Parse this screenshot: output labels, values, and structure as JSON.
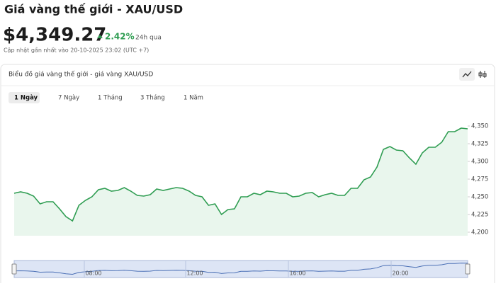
{
  "header": {
    "title": "Giá vàng thế giới - XAU/USD",
    "price": "$4,349.27",
    "change": "2.42%",
    "change_period": "24h qua",
    "updated": "Cập nhật gần nhất vào 20-10-2025 23:02 (UTC +7)"
  },
  "card": {
    "title": "Biểu đồ giá vàng thế giới - giá vàng XAU/USD",
    "tabs": [
      "1 Ngày",
      "7 Ngày",
      "1 Tháng",
      "3 Tháng",
      "1 Năm"
    ]
  },
  "navigator_labels": [
    "08:00",
    "12:00",
    "16:00",
    "20:00"
  ],
  "chart_data": {
    "type": "area",
    "color": "#2f9d52",
    "fill": "#e9f6ed",
    "values": [
      4255,
      4257,
      4255,
      4251,
      4240,
      4243,
      4243,
      4233,
      4222,
      4216,
      4238,
      4245,
      4250,
      4260,
      4262,
      4258,
      4259,
      4263,
      4258,
      4252,
      4251,
      4253,
      4261,
      4259,
      4261,
      4263,
      4262,
      4258,
      4252,
      4250,
      4238,
      4240,
      4225,
      4232,
      4233,
      4250,
      4250,
      4255,
      4253,
      4258,
      4257,
      4255,
      4255,
      4250,
      4251,
      4255,
      4256,
      4250,
      4253,
      4255,
      4252,
      4252,
      4262,
      4262,
      4274,
      4278,
      4292,
      4317,
      4321,
      4316,
      4315,
      4305,
      4296,
      4312,
      4320,
      4320,
      4327,
      4342,
      4342,
      4347,
      4346
    ],
    "ylim": [
      4195,
      4360
    ],
    "yticks": [
      {
        "value": 4200,
        "label": "4,200"
      },
      {
        "value": 4225,
        "label": "4,225"
      },
      {
        "value": 4250,
        "label": "4,250"
      },
      {
        "value": 4275,
        "label": "4,275"
      },
      {
        "value": 4300,
        "label": "4,300"
      },
      {
        "value": 4325,
        "label": "4,325"
      },
      {
        "value": 4350,
        "label": "4,350"
      }
    ]
  }
}
